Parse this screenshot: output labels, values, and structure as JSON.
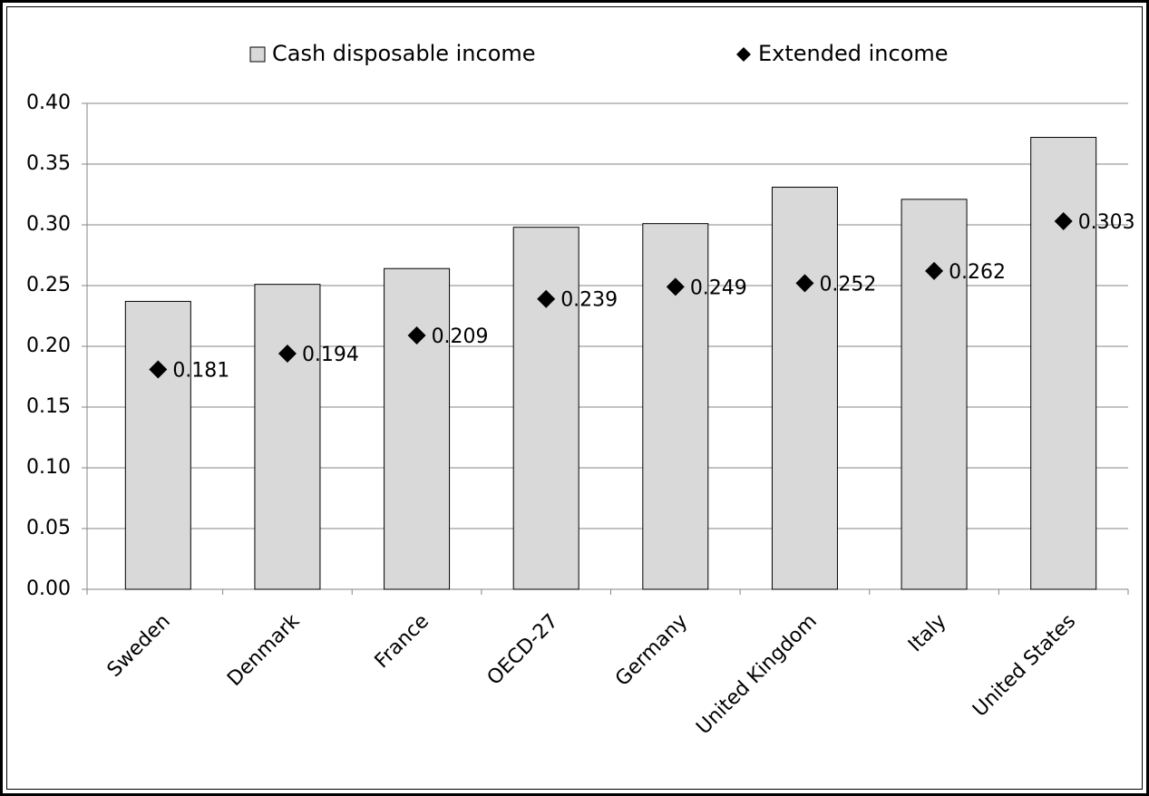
{
  "chart_data": {
    "type": "bar",
    "categories": [
      "Sweden",
      "Denmark",
      "France",
      "OECD-27",
      "Germany",
      "United Kingdom",
      "Italy",
      "United States"
    ],
    "series": [
      {
        "name": "Cash disposable income",
        "type": "bar",
        "color": "#d9d9d9",
        "values": [
          0.237,
          0.251,
          0.264,
          0.298,
          0.301,
          0.331,
          0.321,
          0.372
        ]
      },
      {
        "name": "Extended income",
        "type": "scatter",
        "color": "#000000",
        "values": [
          0.181,
          0.194,
          0.209,
          0.239,
          0.249,
          0.252,
          0.262,
          0.303
        ]
      }
    ],
    "ylim": [
      0,
      0.4
    ],
    "yticks": [
      {
        "value": 0,
        "label": "0.00"
      },
      {
        "value": 0.05,
        "label": "0.05"
      },
      {
        "value": 0.1,
        "label": "0.10"
      },
      {
        "value": 0.15,
        "label": "0.15"
      },
      {
        "value": 0.2,
        "label": "0.20"
      },
      {
        "value": 0.25,
        "label": "0.25"
      },
      {
        "value": 0.3,
        "label": "0.30"
      },
      {
        "value": 0.35,
        "label": "0.35"
      },
      {
        "value": 0.4,
        "label": "0.40"
      }
    ],
    "grid": true,
    "legend": "top"
  }
}
